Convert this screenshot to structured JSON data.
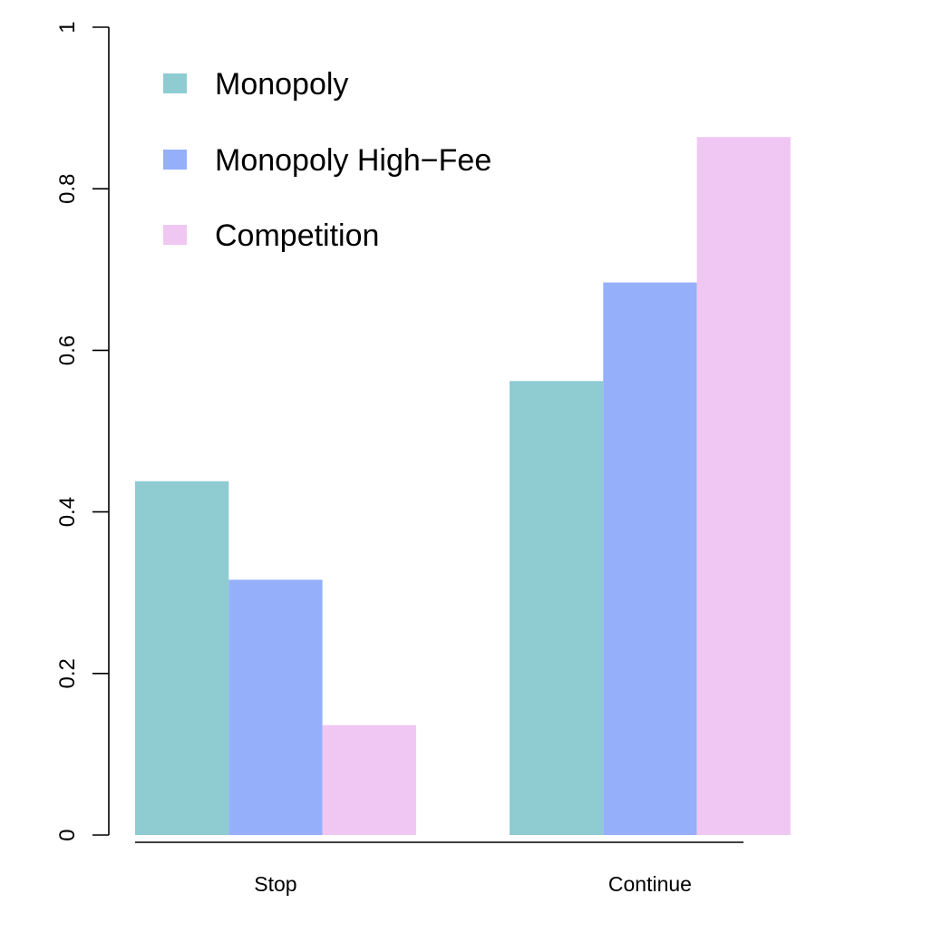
{
  "chart_data": {
    "type": "bar",
    "categories": [
      "Stop",
      "Continue"
    ],
    "series": [
      {
        "name": "Monopoly",
        "values": [
          0.438,
          0.562
        ],
        "color": "#8ECCD2"
      },
      {
        "name": "Monopoly High−Fee",
        "values": [
          0.316,
          0.684
        ],
        "color": "#95AFFB"
      },
      {
        "name": "Competition",
        "values": [
          0.136,
          0.864
        ],
        "color": "#F0C7F2"
      }
    ],
    "ylim": [
      0,
      1
    ],
    "yticks": [
      0,
      0.2,
      0.4,
      0.6,
      0.8,
      1
    ],
    "ytick_labels": [
      "0",
      "0.2",
      "0.4",
      "0.6",
      "0.8",
      "1"
    ],
    "title": "",
    "xlabel": "",
    "ylabel": "",
    "grid": false,
    "legend_position": "top-left"
  }
}
